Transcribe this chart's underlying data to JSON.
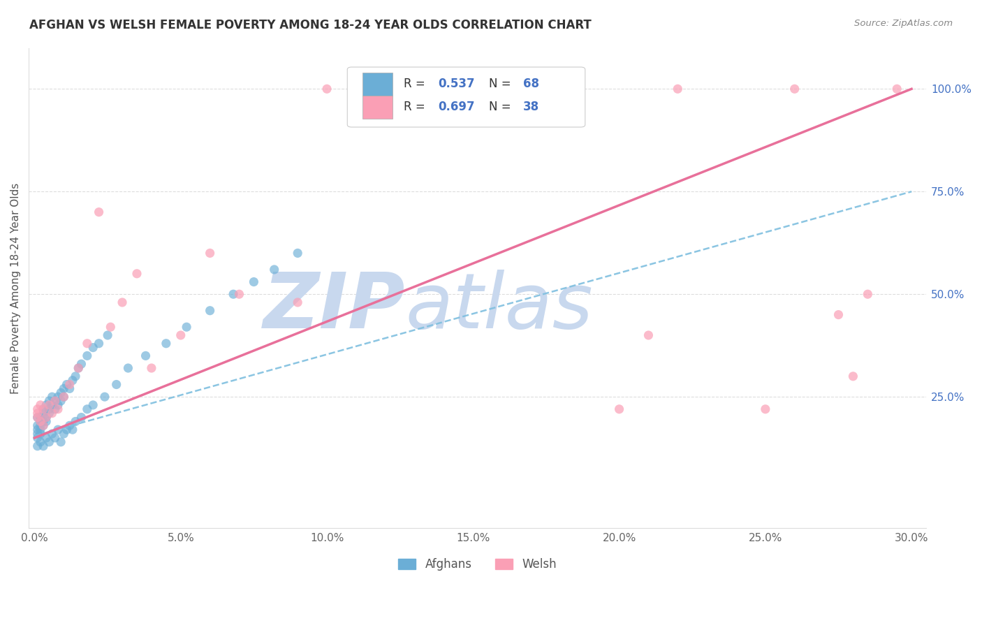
{
  "title": "AFGHAN VS WELSH FEMALE POVERTY AMONG 18-24 YEAR OLDS CORRELATION CHART",
  "source": "Source: ZipAtlas.com",
  "ylabel": "Female Poverty Among 18-24 Year Olds",
  "xlim": [
    -0.002,
    0.305
  ],
  "ylim": [
    -0.07,
    1.1
  ],
  "afghan_R": 0.537,
  "afghan_N": 68,
  "welsh_R": 0.697,
  "welsh_N": 38,
  "color_afghan": "#6baed6",
  "color_welsh": "#fa9fb5",
  "color_afghan_line": "#7fbfdf",
  "color_welsh_line": "#e8709a",
  "color_title": "#333333",
  "color_r_label": "#333333",
  "color_r_value": "#4472c4",
  "watermark_color": "#c8d8ee",
  "afghan_x": [
    0.001,
    0.001,
    0.001,
    0.001,
    0.001,
    0.002,
    0.002,
    0.002,
    0.002,
    0.002,
    0.003,
    0.003,
    0.003,
    0.003,
    0.004,
    0.004,
    0.004,
    0.005,
    0.005,
    0.005,
    0.006,
    0.006,
    0.007,
    0.007,
    0.008,
    0.008,
    0.009,
    0.009,
    0.01,
    0.01,
    0.011,
    0.012,
    0.013,
    0.014,
    0.015,
    0.016,
    0.018,
    0.02,
    0.022,
    0.025,
    0.001,
    0.002,
    0.003,
    0.004,
    0.005,
    0.006,
    0.007,
    0.008,
    0.009,
    0.01,
    0.011,
    0.012,
    0.013,
    0.014,
    0.016,
    0.018,
    0.02,
    0.024,
    0.028,
    0.032,
    0.038,
    0.045,
    0.052,
    0.06,
    0.068,
    0.075,
    0.082,
    0.09
  ],
  "afghan_y": [
    0.17,
    0.18,
    0.16,
    0.2,
    0.15,
    0.19,
    0.17,
    0.16,
    0.18,
    0.2,
    0.21,
    0.19,
    0.22,
    0.18,
    0.23,
    0.2,
    0.19,
    0.22,
    0.24,
    0.21,
    0.23,
    0.25,
    0.24,
    0.22,
    0.25,
    0.23,
    0.26,
    0.24,
    0.27,
    0.25,
    0.28,
    0.27,
    0.29,
    0.3,
    0.32,
    0.33,
    0.35,
    0.37,
    0.38,
    0.4,
    0.13,
    0.14,
    0.13,
    0.15,
    0.14,
    0.16,
    0.15,
    0.17,
    0.14,
    0.16,
    0.17,
    0.18,
    0.17,
    0.19,
    0.2,
    0.22,
    0.23,
    0.25,
    0.28,
    0.32,
    0.35,
    0.38,
    0.42,
    0.46,
    0.5,
    0.53,
    0.56,
    0.6
  ],
  "welsh_x": [
    0.001,
    0.001,
    0.001,
    0.002,
    0.002,
    0.003,
    0.003,
    0.004,
    0.005,
    0.006,
    0.007,
    0.008,
    0.01,
    0.012,
    0.015,
    0.018,
    0.022,
    0.026,
    0.03,
    0.035,
    0.04,
    0.05,
    0.06,
    0.07,
    0.09,
    0.1,
    0.13,
    0.15,
    0.17,
    0.2,
    0.21,
    0.22,
    0.25,
    0.26,
    0.275,
    0.28,
    0.285,
    0.295
  ],
  "welsh_y": [
    0.2,
    0.22,
    0.21,
    0.19,
    0.23,
    0.18,
    0.22,
    0.2,
    0.23,
    0.21,
    0.24,
    0.22,
    0.25,
    0.28,
    0.32,
    0.38,
    0.7,
    0.42,
    0.48,
    0.55,
    0.32,
    0.4,
    0.6,
    0.5,
    0.48,
    1.0,
    1.0,
    1.0,
    1.0,
    0.22,
    0.4,
    1.0,
    0.22,
    1.0,
    0.45,
    0.3,
    0.5,
    1.0
  ],
  "ytick_vals": [
    0.25,
    0.5,
    0.75,
    1.0
  ],
  "ytick_labels": [
    "25.0%",
    "50.0%",
    "75.0%",
    "100.0%"
  ],
  "xtick_vals": [
    0.0,
    0.05,
    0.1,
    0.15,
    0.2,
    0.25,
    0.3
  ],
  "xtick_labels": [
    "0.0%",
    "5.0%",
    "10.0%",
    "15.0%",
    "20.0%",
    "25.0%",
    "30.0%"
  ],
  "welsh_line_x0": 0.0,
  "welsh_line_y0": 0.15,
  "welsh_line_x1": 0.3,
  "welsh_line_y1": 1.0,
  "afghan_line_x0": 0.0,
  "afghan_line_y0": 0.155,
  "afghan_line_x1": 0.3,
  "afghan_line_y1": 0.75
}
